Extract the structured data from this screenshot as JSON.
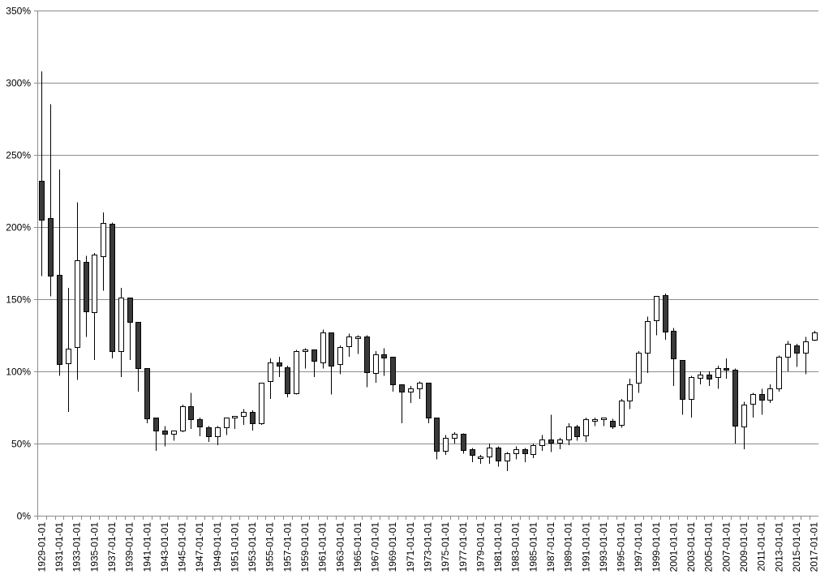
{
  "chart_data": {
    "type": "candlestick",
    "ylim": [
      0,
      350
    ],
    "y_tick_values": [
      0,
      50,
      100,
      150,
      200,
      250,
      300,
      350
    ],
    "y_tick_labels": [
      "0%",
      "50%",
      "100%",
      "150%",
      "200%",
      "250%",
      "300%",
      "350%"
    ],
    "x_tick_labels": [
      "1929-01-01",
      "1931-01-01",
      "1933-01-01",
      "1935-01-01",
      "1937-01-01",
      "1939-01-01",
      "1941-01-01",
      "1943-01-01",
      "1945-01-01",
      "1947-01-01",
      "1949-01-01",
      "1951-01-01",
      "1953-01-01",
      "1955-01-01",
      "1957-01-01",
      "1959-01-01",
      "1961-01-01",
      "1963-01-01",
      "1965-01-01",
      "1967-01-01",
      "1969-01-01",
      "1971-01-01",
      "1973-01-01",
      "1975-01-01",
      "1977-01-01",
      "1979-01-01",
      "1981-01-01",
      "1983-01-01",
      "1985-01-01",
      "1987-01-01",
      "1989-01-01",
      "1991-01-01",
      "1993-01-01",
      "1995-01-01",
      "1997-01-01",
      "1999-01-01",
      "2001-01-01",
      "2003-01-01",
      "2005-01-01",
      "2007-01-01",
      "2009-01-01",
      "2011-01-01",
      "2013-01-01",
      "2015-01-01",
      "2017-01-01"
    ],
    "grid": true,
    "legend": "none",
    "series_colors": {
      "up_fill": "#ffffff",
      "down_fill": "#3a3a3a",
      "outline": "#000000",
      "gridline": "#8c8c8c"
    },
    "candles": [
      {
        "x": "1929-01-01",
        "open": 232,
        "high": 308,
        "low": 166,
        "close": 205
      },
      {
        "x": "1930-01-01",
        "open": 206,
        "high": 285,
        "low": 152,
        "close": 166
      },
      {
        "x": "1931-01-01",
        "open": 167,
        "high": 240,
        "low": 97,
        "close": 105
      },
      {
        "x": "1932-01-01",
        "open": 106,
        "high": 158,
        "low": 72,
        "close": 116
      },
      {
        "x": "1933-01-01",
        "open": 117,
        "high": 217,
        "low": 94,
        "close": 177
      },
      {
        "x": "1934-01-01",
        "open": 176,
        "high": 180,
        "low": 124,
        "close": 142
      },
      {
        "x": "1935-01-01",
        "open": 141,
        "high": 182,
        "low": 108,
        "close": 181
      },
      {
        "x": "1936-01-01",
        "open": 180,
        "high": 210,
        "low": 156,
        "close": 203
      },
      {
        "x": "1937-01-01",
        "open": 202,
        "high": 203,
        "low": 109,
        "close": 114
      },
      {
        "x": "1938-01-01",
        "open": 114,
        "high": 158,
        "low": 96,
        "close": 151
      },
      {
        "x": "1939-01-01",
        "open": 151,
        "high": 151,
        "low": 108,
        "close": 134
      },
      {
        "x": "1940-01-01",
        "open": 134,
        "high": 134,
        "low": 86,
        "close": 102
      },
      {
        "x": "1941-01-01",
        "open": 102,
        "high": 102,
        "low": 64,
        "close": 67
      },
      {
        "x": "1942-01-01",
        "open": 68,
        "high": 68,
        "low": 45,
        "close": 59
      },
      {
        "x": "1943-01-01",
        "open": 59,
        "high": 62,
        "low": 48,
        "close": 57
      },
      {
        "x": "1944-01-01",
        "open": 57,
        "high": 59,
        "low": 52,
        "close": 59
      },
      {
        "x": "1945-01-01",
        "open": 59,
        "high": 77,
        "low": 58,
        "close": 76
      },
      {
        "x": "1946-01-01",
        "open": 76,
        "high": 85,
        "low": 60,
        "close": 67
      },
      {
        "x": "1947-01-01",
        "open": 67,
        "high": 68,
        "low": 55,
        "close": 62
      },
      {
        "x": "1948-01-01",
        "open": 61,
        "high": 62,
        "low": 51,
        "close": 55
      },
      {
        "x": "1949-01-01",
        "open": 55,
        "high": 62,
        "low": 49,
        "close": 61
      },
      {
        "x": "1950-01-01",
        "open": 61,
        "high": 68,
        "low": 56,
        "close": 68
      },
      {
        "x": "1951-01-01",
        "open": 68,
        "high": 69,
        "low": 60,
        "close": 69
      },
      {
        "x": "1952-01-01",
        "open": 69,
        "high": 74,
        "low": 63,
        "close": 72
      },
      {
        "x": "1953-01-01",
        "open": 72,
        "high": 73,
        "low": 59,
        "close": 64
      },
      {
        "x": "1954-01-01",
        "open": 64,
        "high": 92,
        "low": 63,
        "close": 92
      },
      {
        "x": "1955-01-01",
        "open": 93,
        "high": 109,
        "low": 81,
        "close": 106
      },
      {
        "x": "1956-01-01",
        "open": 106,
        "high": 110,
        "low": 96,
        "close": 104
      },
      {
        "x": "1957-01-01",
        "open": 103,
        "high": 104,
        "low": 82,
        "close": 85
      },
      {
        "x": "1958-01-01",
        "open": 85,
        "high": 115,
        "low": 84,
        "close": 114
      },
      {
        "x": "1959-01-01",
        "open": 114,
        "high": 116,
        "low": 102,
        "close": 115
      },
      {
        "x": "1960-01-01",
        "open": 115,
        "high": 115,
        "low": 96,
        "close": 107
      },
      {
        "x": "1961-01-01",
        "open": 106,
        "high": 129,
        "low": 102,
        "close": 127
      },
      {
        "x": "1962-01-01",
        "open": 127,
        "high": 127,
        "low": 84,
        "close": 104
      },
      {
        "x": "1963-01-01",
        "open": 105,
        "high": 118,
        "low": 98,
        "close": 117
      },
      {
        "x": "1964-01-01",
        "open": 117,
        "high": 126,
        "low": 110,
        "close": 124
      },
      {
        "x": "1965-01-01",
        "open": 123,
        "high": 125,
        "low": 112,
        "close": 124
      },
      {
        "x": "1966-01-01",
        "open": 124,
        "high": 125,
        "low": 89,
        "close": 99
      },
      {
        "x": "1967-01-01",
        "open": 99,
        "high": 114,
        "low": 92,
        "close": 112
      },
      {
        "x": "1968-01-01",
        "open": 112,
        "high": 116,
        "low": 97,
        "close": 110
      },
      {
        "x": "1969-01-01",
        "open": 110,
        "high": 110,
        "low": 86,
        "close": 91
      },
      {
        "x": "1970-01-01",
        "open": 91,
        "high": 91,
        "low": 64,
        "close": 86
      },
      {
        "x": "1971-01-01",
        "open": 86,
        "high": 90,
        "low": 78,
        "close": 88
      },
      {
        "x": "1972-01-01",
        "open": 88,
        "high": 93,
        "low": 81,
        "close": 92
      },
      {
        "x": "1973-01-01",
        "open": 92,
        "high": 92,
        "low": 64,
        "close": 68
      },
      {
        "x": "1974-01-01",
        "open": 68,
        "high": 68,
        "low": 39,
        "close": 45
      },
      {
        "x": "1975-01-01",
        "open": 45,
        "high": 56,
        "low": 42,
        "close": 54
      },
      {
        "x": "1976-01-01",
        "open": 54,
        "high": 58,
        "low": 50,
        "close": 57
      },
      {
        "x": "1977-01-01",
        "open": 57,
        "high": 57,
        "low": 43,
        "close": 46
      },
      {
        "x": "1978-01-01",
        "open": 46,
        "high": 47,
        "low": 37,
        "close": 42
      },
      {
        "x": "1979-01-01",
        "open": 41,
        "high": 42,
        "low": 36,
        "close": 41
      },
      {
        "x": "1980-01-01",
        "open": 41,
        "high": 50,
        "low": 36,
        "close": 47
      },
      {
        "x": "1981-01-01",
        "open": 47,
        "high": 48,
        "low": 34,
        "close": 38
      },
      {
        "x": "1982-01-01",
        "open": 38,
        "high": 44,
        "low": 31,
        "close": 43
      },
      {
        "x": "1983-01-01",
        "open": 43,
        "high": 48,
        "low": 39,
        "close": 46
      },
      {
        "x": "1984-01-01",
        "open": 46,
        "high": 47,
        "low": 37,
        "close": 43
      },
      {
        "x": "1985-01-01",
        "open": 43,
        "high": 50,
        "low": 40,
        "close": 49
      },
      {
        "x": "1986-01-01",
        "open": 49,
        "high": 56,
        "low": 45,
        "close": 53
      },
      {
        "x": "1987-01-01",
        "open": 53,
        "high": 70,
        "low": 44,
        "close": 51
      },
      {
        "x": "1988-01-01",
        "open": 51,
        "high": 54,
        "low": 46,
        "close": 53
      },
      {
        "x": "1989-01-01",
        "open": 53,
        "high": 64,
        "low": 49,
        "close": 62
      },
      {
        "x": "1990-01-01",
        "open": 62,
        "high": 63,
        "low": 52,
        "close": 55
      },
      {
        "x": "1991-01-01",
        "open": 56,
        "high": 68,
        "low": 51,
        "close": 67
      },
      {
        "x": "1992-01-01",
        "open": 67,
        "high": 68,
        "low": 62,
        "close": 67
      },
      {
        "x": "1993-01-01",
        "open": 67,
        "high": 68,
        "low": 62,
        "close": 68
      },
      {
        "x": "1994-01-01",
        "open": 66,
        "high": 67,
        "low": 60,
        "close": 62
      },
      {
        "x": "1995-01-01",
        "open": 63,
        "high": 81,
        "low": 61,
        "close": 80
      },
      {
        "x": "1996-01-01",
        "open": 80,
        "high": 95,
        "low": 74,
        "close": 91
      },
      {
        "x": "1997-01-01",
        "open": 92,
        "high": 114,
        "low": 85,
        "close": 113
      },
      {
        "x": "1998-01-01",
        "open": 113,
        "high": 138,
        "low": 99,
        "close": 135
      },
      {
        "x": "1999-01-01",
        "open": 135,
        "high": 152,
        "low": 125,
        "close": 152
      },
      {
        "x": "2000-01-01",
        "open": 153,
        "high": 154,
        "low": 122,
        "close": 128
      },
      {
        "x": "2001-01-01",
        "open": 128,
        "high": 130,
        "low": 90,
        "close": 109
      },
      {
        "x": "2002-01-01",
        "open": 108,
        "high": 108,
        "low": 70,
        "close": 81
      },
      {
        "x": "2003-01-01",
        "open": 81,
        "high": 97,
        "low": 68,
        "close": 96
      },
      {
        "x": "2004-01-01",
        "open": 96,
        "high": 100,
        "low": 91,
        "close": 98
      },
      {
        "x": "2005-01-01",
        "open": 98,
        "high": 100,
        "low": 90,
        "close": 95
      },
      {
        "x": "2006-01-01",
        "open": 96,
        "high": 104,
        "low": 88,
        "close": 102
      },
      {
        "x": "2007-01-01",
        "open": 102,
        "high": 109,
        "low": 95,
        "close": 101
      },
      {
        "x": "2008-01-01",
        "open": 101,
        "high": 102,
        "low": 50,
        "close": 62
      },
      {
        "x": "2009-01-01",
        "open": 62,
        "high": 79,
        "low": 46,
        "close": 77
      },
      {
        "x": "2010-01-01",
        "open": 77,
        "high": 85,
        "low": 68,
        "close": 84
      },
      {
        "x": "2011-01-01",
        "open": 84,
        "high": 88,
        "low": 70,
        "close": 80
      },
      {
        "x": "2012-01-01",
        "open": 80,
        "high": 91,
        "low": 78,
        "close": 88
      },
      {
        "x": "2013-01-01",
        "open": 88,
        "high": 111,
        "low": 86,
        "close": 110
      },
      {
        "x": "2014-01-01",
        "open": 110,
        "high": 121,
        "low": 100,
        "close": 119
      },
      {
        "x": "2015-01-01",
        "open": 118,
        "high": 119,
        "low": 103,
        "close": 113
      },
      {
        "x": "2016-01-01",
        "open": 113,
        "high": 124,
        "low": 98,
        "close": 121
      },
      {
        "x": "2017-01-01",
        "open": 122,
        "high": 128,
        "low": 121,
        "close": 127
      }
    ]
  }
}
